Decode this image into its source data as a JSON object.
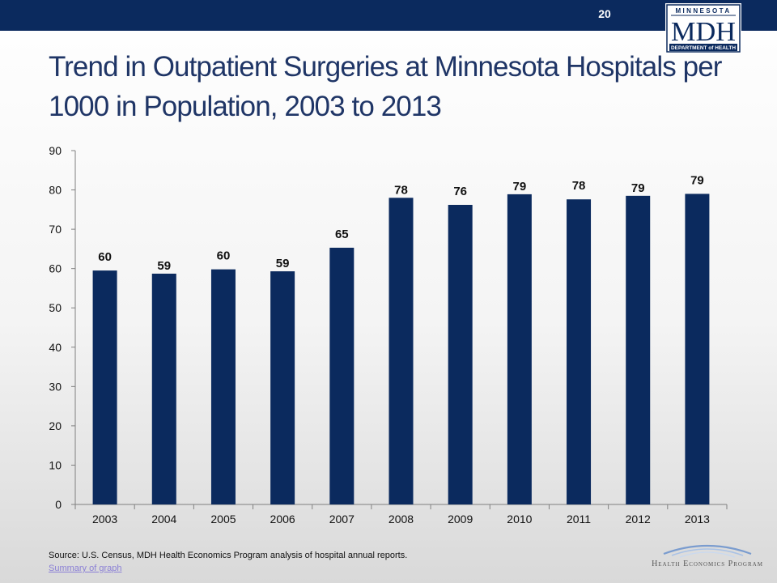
{
  "header": {
    "slide_number": "20",
    "logo": {
      "top_text": "MINNESOTA",
      "main_text": "MDH",
      "bottom_text": "DEPARTMENT of HEALTH"
    }
  },
  "footer": {
    "source": "Source: U.S. Census, MDH Health Economics Program analysis of hospital annual reports.",
    "summary_link": "Summary of graph",
    "program_logo_text": "Health Economics Program"
  },
  "colors": {
    "bar": "#0b2a5e",
    "header_bar": "#0b2a5e",
    "title": "#1f3566"
  },
  "chart_data": {
    "type": "bar",
    "title": "Trend in Outpatient Surgeries at Minnesota Hospitals per 1000 in Population, 2003 to 2013",
    "xlabel": "",
    "ylabel": "",
    "categories": [
      "2003",
      "2004",
      "2005",
      "2006",
      "2007",
      "2008",
      "2009",
      "2010",
      "2011",
      "2012",
      "2013"
    ],
    "values": [
      59.5,
      58.7,
      59.8,
      59.3,
      65.3,
      78.0,
      76.2,
      78.9,
      77.6,
      78.5,
      79.0
    ],
    "data_labels": [
      "60",
      "59",
      "60",
      "59",
      "65",
      "78",
      "76",
      "79",
      "78",
      "79",
      "79"
    ],
    "ylim": [
      0,
      90
    ],
    "yticks": [
      0,
      10,
      20,
      30,
      40,
      50,
      60,
      70,
      80,
      90
    ],
    "grid": false,
    "legend": "none"
  }
}
